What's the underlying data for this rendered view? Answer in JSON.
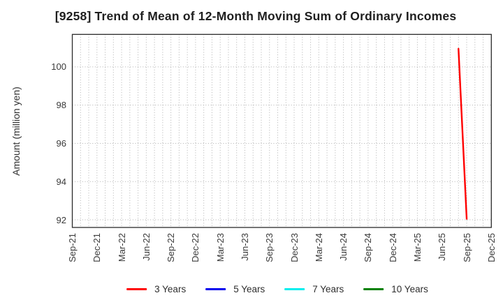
{
  "title": "[9258]  Trend of Mean of 12-Month Moving Sum of Ordinary Incomes",
  "chart_data": {
    "type": "line",
    "title": "[9258]  Trend of Mean of 12-Month Moving Sum of Ordinary Incomes",
    "xlabel": "",
    "ylabel": "Amount (million yen)",
    "x_tick_labels": [
      "Sep-21",
      "Dec-21",
      "Mar-22",
      "Jun-22",
      "Sep-22",
      "Dec-22",
      "Mar-23",
      "Jun-23",
      "Sep-23",
      "Dec-23",
      "Mar-24",
      "Jun-24",
      "Sep-24",
      "Dec-24",
      "Mar-25",
      "Jun-25",
      "Sep-25",
      "Dec-25"
    ],
    "x_tick_month_step": 3,
    "xlim_months": [
      0,
      51
    ],
    "minor_grid_every_month": true,
    "yticks": [
      92,
      94,
      96,
      98,
      100
    ],
    "ylim": [
      91.6,
      101.7
    ],
    "grid": "dotted",
    "legend_position": "bottom",
    "series": [
      {
        "name": "3 Years",
        "color": "#ff0000",
        "points": [
          {
            "x_label": "Aug-25",
            "month": 47,
            "value": 100.95
          },
          {
            "x_label": "Sep-25",
            "month": 48,
            "value": 92.05
          }
        ]
      },
      {
        "name": "5 Years",
        "color": "#0000ee",
        "points": []
      },
      {
        "name": "7 Years",
        "color": "#00eeee",
        "points": []
      },
      {
        "name": "10 Years",
        "color": "#008000",
        "points": []
      }
    ]
  },
  "colors": {
    "frame": "#2b2b2b",
    "grid": "#b0b0b0",
    "tick_text": "#3a3a3a",
    "title_text": "#1f1f1f"
  }
}
